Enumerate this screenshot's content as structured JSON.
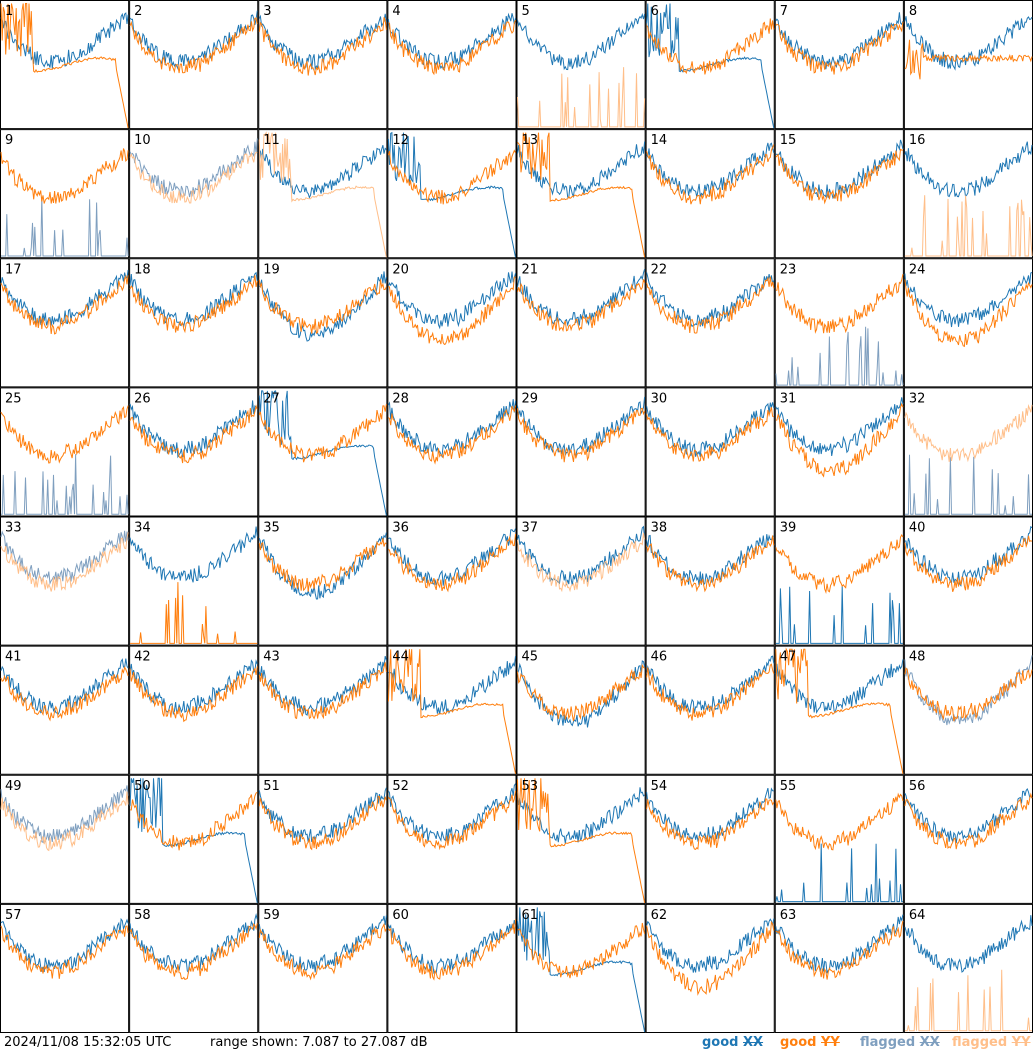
{
  "footer": {
    "timestamp": "2024/11/08 15:32:05 UTC",
    "range_text": "range shown: 7.087 to 27.087 dB"
  },
  "legend": [
    {
      "label": "good",
      "pol": "XX",
      "color": "#1f77b4"
    },
    {
      "label": "good",
      "pol": "YY",
      "color": "#ff7f0e"
    },
    {
      "label": "flagged",
      "pol": "XX",
      "color": "#7f9fbf"
    },
    {
      "label": "flagged",
      "pol": "YY",
      "color": "#ffbf8a"
    }
  ],
  "chart_data": {
    "type": "line",
    "layout": "8x8 small multiples",
    "ylim": [
      7.087,
      27.087
    ],
    "yunits": "dB",
    "panels": [
      {
        "id": "1",
        "xx": "good",
        "yy": "good",
        "xx_shape": "normal",
        "yy_shape": "dropout"
      },
      {
        "id": "2",
        "xx": "good",
        "yy": "good",
        "xx_shape": "normal",
        "yy_shape": "normal"
      },
      {
        "id": "3",
        "xx": "good",
        "yy": "good",
        "xx_shape": "normal",
        "yy_shape": "normal"
      },
      {
        "id": "4",
        "xx": "good",
        "yy": "good",
        "xx_shape": "normal",
        "yy_shape": "normal"
      },
      {
        "id": "5",
        "xx": "good",
        "yy": "flagged",
        "xx_shape": "normal",
        "yy_shape": "spikes"
      },
      {
        "id": "6",
        "xx": "good",
        "yy": "good",
        "xx_shape": "dropout",
        "yy_shape": "normal"
      },
      {
        "id": "7",
        "xx": "good",
        "yy": "good",
        "xx_shape": "normal",
        "yy_shape": "normal"
      },
      {
        "id": "8",
        "xx": "good",
        "yy": "good",
        "xx_shape": "normal",
        "yy_shape": "flat"
      },
      {
        "id": "9",
        "xx": "flagged",
        "yy": "good",
        "xx_shape": "spikes",
        "yy_shape": "normal"
      },
      {
        "id": "10",
        "xx": "flagged",
        "yy": "flagged",
        "xx_shape": "normal",
        "yy_shape": "normal"
      },
      {
        "id": "11",
        "xx": "good",
        "yy": "flagged",
        "xx_shape": "normal",
        "yy_shape": "dropout"
      },
      {
        "id": "12",
        "xx": "good",
        "yy": "good",
        "xx_shape": "dropout",
        "yy_shape": "normal"
      },
      {
        "id": "13",
        "xx": "good",
        "yy": "good",
        "xx_shape": "normal",
        "yy_shape": "dropout"
      },
      {
        "id": "14",
        "xx": "good",
        "yy": "good",
        "xx_shape": "normal",
        "yy_shape": "normal"
      },
      {
        "id": "15",
        "xx": "good",
        "yy": "good",
        "xx_shape": "normal",
        "yy_shape": "normal"
      },
      {
        "id": "16",
        "xx": "good",
        "yy": "flagged",
        "xx_shape": "normal",
        "yy_shape": "spikes"
      },
      {
        "id": "17",
        "xx": "good",
        "yy": "good",
        "xx_shape": "normal",
        "yy_shape": "normal"
      },
      {
        "id": "18",
        "xx": "good",
        "yy": "good",
        "xx_shape": "normal",
        "yy_shape": "normal"
      },
      {
        "id": "19",
        "xx": "good",
        "yy": "good",
        "xx_shape": "low",
        "yy_shape": "normal"
      },
      {
        "id": "20",
        "xx": "good",
        "yy": "good",
        "xx_shape": "normal",
        "yy_shape": "low"
      },
      {
        "id": "21",
        "xx": "good",
        "yy": "good",
        "xx_shape": "normal",
        "yy_shape": "normal"
      },
      {
        "id": "22",
        "xx": "good",
        "yy": "good",
        "xx_shape": "normal",
        "yy_shape": "normal"
      },
      {
        "id": "23",
        "xx": "flagged",
        "yy": "good",
        "xx_shape": "spikes",
        "yy_shape": "normal"
      },
      {
        "id": "24",
        "xx": "good",
        "yy": "good",
        "xx_shape": "normal",
        "yy_shape": "low"
      },
      {
        "id": "25",
        "xx": "flagged",
        "yy": "good",
        "xx_shape": "spikes",
        "yy_shape": "normal"
      },
      {
        "id": "26",
        "xx": "good",
        "yy": "good",
        "xx_shape": "normal",
        "yy_shape": "normal"
      },
      {
        "id": "27",
        "xx": "good",
        "yy": "good",
        "xx_shape": "dropout",
        "yy_shape": "normal"
      },
      {
        "id": "28",
        "xx": "good",
        "yy": "good",
        "xx_shape": "normal",
        "yy_shape": "normal"
      },
      {
        "id": "29",
        "xx": "good",
        "yy": "good",
        "xx_shape": "normal",
        "yy_shape": "normal"
      },
      {
        "id": "30",
        "xx": "good",
        "yy": "good",
        "xx_shape": "normal",
        "yy_shape": "normal"
      },
      {
        "id": "31",
        "xx": "good",
        "yy": "good",
        "xx_shape": "normal",
        "yy_shape": "low"
      },
      {
        "id": "32",
        "xx": "flagged",
        "yy": "flagged",
        "xx_shape": "spikes",
        "yy_shape": "normal"
      },
      {
        "id": "33",
        "xx": "flagged",
        "yy": "flagged",
        "xx_shape": "normal",
        "yy_shape": "normal"
      },
      {
        "id": "34",
        "xx": "good",
        "yy": "good",
        "xx_shape": "normal",
        "yy_shape": "spikes"
      },
      {
        "id": "35",
        "xx": "good",
        "yy": "good",
        "xx_shape": "low",
        "yy_shape": "normal"
      },
      {
        "id": "36",
        "xx": "good",
        "yy": "good",
        "xx_shape": "normal",
        "yy_shape": "normal"
      },
      {
        "id": "37",
        "xx": "good",
        "yy": "flagged",
        "xx_shape": "normal",
        "yy_shape": "normal"
      },
      {
        "id": "38",
        "xx": "good",
        "yy": "good",
        "xx_shape": "normal",
        "yy_shape": "normal"
      },
      {
        "id": "39",
        "xx": "good",
        "yy": "good",
        "xx_shape": "spikes",
        "yy_shape": "normal"
      },
      {
        "id": "40",
        "xx": "good",
        "yy": "good",
        "xx_shape": "normal",
        "yy_shape": "normal"
      },
      {
        "id": "41",
        "xx": "good",
        "yy": "good",
        "xx_shape": "normal",
        "yy_shape": "normal"
      },
      {
        "id": "42",
        "xx": "good",
        "yy": "good",
        "xx_shape": "normal",
        "yy_shape": "normal"
      },
      {
        "id": "43",
        "xx": "good",
        "yy": "good",
        "xx_shape": "normal",
        "yy_shape": "normal"
      },
      {
        "id": "44",
        "xx": "good",
        "yy": "good",
        "xx_shape": "normal",
        "yy_shape": "dropout"
      },
      {
        "id": "45",
        "xx": "good",
        "yy": "good",
        "xx_shape": "low",
        "yy_shape": "normal"
      },
      {
        "id": "46",
        "xx": "good",
        "yy": "good",
        "xx_shape": "normal",
        "yy_shape": "normal"
      },
      {
        "id": "47",
        "xx": "good",
        "yy": "good",
        "xx_shape": "normal",
        "yy_shape": "dropout"
      },
      {
        "id": "48",
        "xx": "flagged",
        "yy": "good",
        "xx_shape": "low",
        "yy_shape": "normal"
      },
      {
        "id": "49",
        "xx": "flagged",
        "yy": "flagged",
        "xx_shape": "normal",
        "yy_shape": "normal"
      },
      {
        "id": "50",
        "xx": "good",
        "yy": "good",
        "xx_shape": "dropout",
        "yy_shape": "normal"
      },
      {
        "id": "51",
        "xx": "good",
        "yy": "good",
        "xx_shape": "normal",
        "yy_shape": "normal"
      },
      {
        "id": "52",
        "xx": "good",
        "yy": "good",
        "xx_shape": "normal",
        "yy_shape": "normal"
      },
      {
        "id": "53",
        "xx": "good",
        "yy": "good",
        "xx_shape": "normal",
        "yy_shape": "dropout"
      },
      {
        "id": "54",
        "xx": "good",
        "yy": "good",
        "xx_shape": "normal",
        "yy_shape": "normal"
      },
      {
        "id": "55",
        "xx": "good",
        "yy": "good",
        "xx_shape": "spikes",
        "yy_shape": "normal"
      },
      {
        "id": "56",
        "xx": "good",
        "yy": "good",
        "xx_shape": "normal",
        "yy_shape": "normal"
      },
      {
        "id": "57",
        "xx": "good",
        "yy": "good",
        "xx_shape": "normal",
        "yy_shape": "normal"
      },
      {
        "id": "58",
        "xx": "good",
        "yy": "good",
        "xx_shape": "normal",
        "yy_shape": "normal"
      },
      {
        "id": "59",
        "xx": "good",
        "yy": "good",
        "xx_shape": "normal",
        "yy_shape": "normal"
      },
      {
        "id": "60",
        "xx": "good",
        "yy": "good",
        "xx_shape": "normal",
        "yy_shape": "normal"
      },
      {
        "id": "61",
        "xx": "good",
        "yy": "good",
        "xx_shape": "dropout",
        "yy_shape": "normal"
      },
      {
        "id": "62",
        "xx": "good",
        "yy": "good",
        "xx_shape": "normal",
        "yy_shape": "low"
      },
      {
        "id": "63",
        "xx": "good",
        "yy": "good",
        "xx_shape": "normal",
        "yy_shape": "normal"
      },
      {
        "id": "64",
        "xx": "good",
        "yy": "flagged",
        "xx_shape": "normal",
        "yy_shape": "spikes"
      }
    ]
  }
}
